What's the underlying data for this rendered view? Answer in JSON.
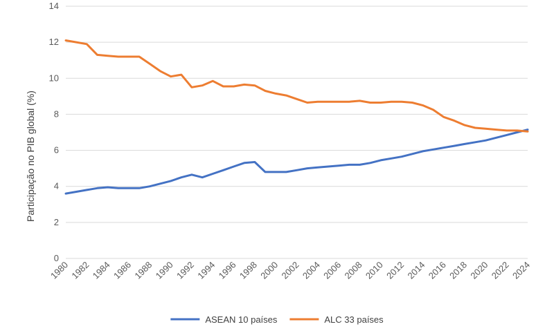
{
  "chart_data": {
    "type": "line",
    "title": "",
    "xlabel": "",
    "ylabel": "Participação no PIB global (%)",
    "ylim": [
      0,
      14
    ],
    "yticks": [
      "0",
      "2",
      "4",
      "6",
      "8",
      "10",
      "12",
      "14"
    ],
    "xlim": [
      1980,
      2024
    ],
    "xticks": [
      "1980",
      "1982",
      "1984",
      "1986",
      "1988",
      "1990",
      "1992",
      "1994",
      "1996",
      "1998",
      "2000",
      "2002",
      "2004",
      "2006",
      "2008",
      "2010",
      "2012",
      "2014",
      "2016",
      "2018",
      "2020",
      "2022",
      "2024"
    ],
    "grid": true,
    "legend_position": "bottom",
    "x": [
      1980,
      1981,
      1982,
      1983,
      1984,
      1985,
      1986,
      1987,
      1988,
      1989,
      1990,
      1991,
      1992,
      1993,
      1994,
      1995,
      1996,
      1997,
      1998,
      1999,
      2000,
      2001,
      2002,
      2003,
      2004,
      2005,
      2006,
      2007,
      2008,
      2009,
      2010,
      2011,
      2012,
      2013,
      2014,
      2015,
      2016,
      2017,
      2018,
      2019,
      2020,
      2021,
      2022,
      2023,
      2024
    ],
    "series": [
      {
        "name": "ASEAN 10 países",
        "color": "#4472C4",
        "values": [
          3.6,
          3.7,
          3.8,
          3.9,
          3.95,
          3.9,
          3.9,
          3.9,
          4.0,
          4.15,
          4.3,
          4.5,
          4.65,
          4.5,
          4.7,
          4.9,
          5.1,
          5.3,
          5.35,
          4.8,
          4.8,
          4.8,
          4.9,
          5.0,
          5.05,
          5.1,
          5.15,
          5.2,
          5.2,
          5.3,
          5.45,
          5.55,
          5.65,
          5.8,
          5.95,
          6.05,
          6.15,
          6.25,
          6.35,
          6.45,
          6.55,
          6.7,
          6.85,
          7.0,
          7.15
        ]
      },
      {
        "name": "ALC 33 países",
        "color": "#ED7D31",
        "values": [
          12.1,
          12.0,
          11.9,
          11.3,
          11.25,
          11.2,
          11.2,
          11.2,
          10.8,
          10.4,
          10.1,
          10.2,
          9.5,
          9.6,
          9.85,
          9.55,
          9.55,
          9.65,
          9.6,
          9.3,
          9.15,
          9.05,
          8.85,
          8.65,
          8.7,
          8.7,
          8.7,
          8.7,
          8.75,
          8.65,
          8.65,
          8.7,
          8.7,
          8.65,
          8.5,
          8.25,
          7.85,
          7.65,
          7.4,
          7.25,
          7.2,
          7.15,
          7.1,
          7.1,
          7.05
        ]
      }
    ]
  }
}
